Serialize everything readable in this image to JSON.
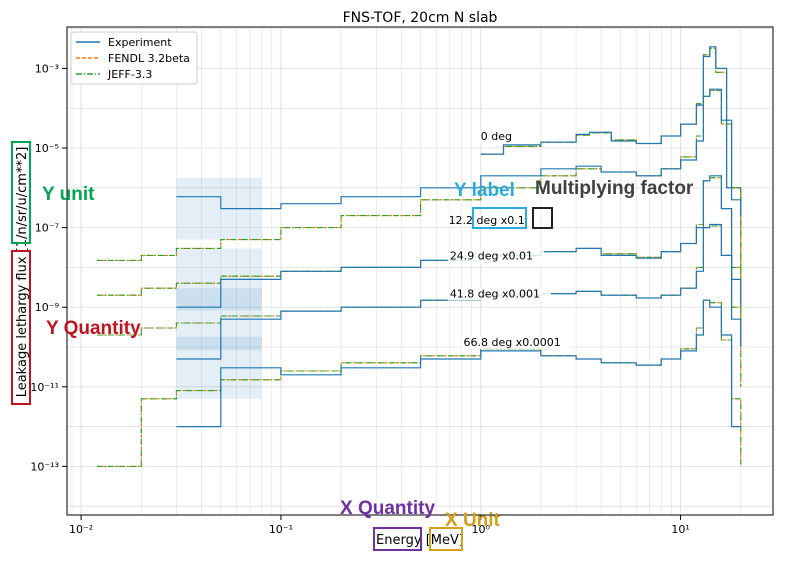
{
  "chart_data": {
    "type": "line",
    "title": "FNS-TOF, 20cm N slab",
    "xlabel": "Energy [MeV]",
    "ylabel": "Leakage lethargy flux [1/n/sr/u/cm**2]",
    "xscale": "log",
    "yscale": "log",
    "xlim": [
      0.0085,
      29
    ],
    "ylim": [
      6e-15,
      0.011
    ],
    "x_ticks": [
      {
        "value": 0.01,
        "label": "10⁻²"
      },
      {
        "value": 0.1,
        "label": "10⁻¹"
      },
      {
        "value": 1,
        "label": "10⁰"
      },
      {
        "value": 10,
        "label": "10¹"
      }
    ],
    "y_ticks": [
      {
        "value": 0.001,
        "label": "10⁻³"
      },
      {
        "value": 1e-05,
        "label": "10⁻⁵"
      },
      {
        "value": 1e-07,
        "label": "10⁻⁷"
      },
      {
        "value": 1e-09,
        "label": "10⁻⁹"
      },
      {
        "value": 1e-11,
        "label": "10⁻¹¹"
      },
      {
        "value": 1e-13,
        "label": "10⁻¹³"
      }
    ],
    "grid": true,
    "legend_position": "top-left",
    "legend": [
      {
        "name": "Experiment",
        "color": "#1f77b4",
        "dash": "solid"
      },
      {
        "name": "FENDL 3.2beta",
        "color": "#ff7f0e",
        "dash": "dashed"
      },
      {
        "name": "JEFF-3.3",
        "color": "#2ca02c",
        "dash": "dashdot"
      }
    ],
    "groups": [
      {
        "label": "0 deg",
        "label_pos": [
          1.0,
          1.6e-05
        ],
        "x": [
          0.012,
          0.02,
          0.03,
          0.05,
          0.1,
          0.2,
          0.5,
          1,
          1.3,
          2,
          3,
          3.5,
          4.5,
          6,
          8,
          10,
          12,
          13,
          14,
          15,
          17,
          20
        ],
        "experiment": [
          null,
          null,
          null,
          null,
          null,
          null,
          null,
          7e-06,
          1.2e-05,
          1.4e-05,
          2.2e-05,
          2.5e-05,
          1.5e-05,
          1.3e-05,
          2e-05,
          4e-05,
          0.00012,
          0.002,
          0.0035,
          0.001,
          1e-06,
          2e-07
        ],
        "fendl": [
          null,
          null,
          null,
          null,
          null,
          null,
          null,
          7e-06,
          1.1e-05,
          1.4e-05,
          2.1e-05,
          2.4e-05,
          1.6e-05,
          1.3e-05,
          2e-05,
          4e-05,
          0.00013,
          0.0022,
          0.0032,
          0.0008,
          1e-06,
          1e-08
        ],
        "jeff": [
          null,
          null,
          null,
          null,
          null,
          null,
          null,
          7e-06,
          1.1e-05,
          1.4e-05,
          2.1e-05,
          2.4e-05,
          1.6e-05,
          1.3e-05,
          2e-05,
          4e-05,
          0.00013,
          0.0022,
          0.0032,
          0.0008,
          1e-06,
          1e-08
        ]
      },
      {
        "label": "12.2 deg x0.1",
        "label_pos": [
          0.69,
          1.25e-07
        ],
        "x": [
          0.012,
          0.02,
          0.03,
          0.05,
          0.1,
          0.2,
          0.5,
          1,
          2,
          3,
          4,
          6,
          8,
          10,
          12,
          13,
          14,
          16,
          18,
          20
        ],
        "experiment": [
          null,
          null,
          6e-07,
          3e-07,
          4e-07,
          6e-07,
          1e-06,
          2e-06,
          3e-06,
          3.5e-06,
          2.5e-06,
          2e-06,
          3e-06,
          5e-06,
          1.5e-05,
          0.0002,
          0.0003,
          5e-05,
          5e-07,
          2e-07
        ],
        "fendl": [
          1.5e-08,
          2e-08,
          3e-08,
          5e-08,
          1e-07,
          2e-07,
          5e-07,
          1e-06,
          2e-06,
          3e-06,
          2.5e-06,
          2e-06,
          3e-06,
          6e-06,
          2e-05,
          0.0002,
          0.00028,
          4e-05,
          1e-06,
          1e-09
        ],
        "jeff": [
          1.5e-08,
          2e-08,
          3e-08,
          5e-08,
          1e-07,
          2e-07,
          5e-07,
          1e-06,
          2e-06,
          3e-06,
          2.5e-06,
          2e-06,
          3e-06,
          6e-06,
          2e-05,
          0.0002,
          0.00028,
          4e-05,
          1e-06,
          1e-09
        ]
      },
      {
        "label": "24.9 deg x0.01",
        "label_pos": [
          0.7,
          1.6e-08
        ],
        "x": [
          0.012,
          0.02,
          0.03,
          0.05,
          0.1,
          0.2,
          0.5,
          1,
          2,
          3,
          4,
          6,
          8,
          10,
          12,
          13,
          14,
          16,
          18,
          20
        ],
        "experiment": [
          null,
          null,
          1e-09,
          5e-09,
          8e-09,
          1e-08,
          1.5e-08,
          2e-08,
          2.5e-08,
          3e-08,
          2e-08,
          1.7e-08,
          2.5e-08,
          4e-08,
          1e-07,
          1.5e-06,
          2e-06,
          3e-07,
          5e-09,
          1e-09
        ],
        "fendl": [
          2e-09,
          3e-09,
          4e-09,
          6e-09,
          8e-09,
          1e-08,
          1.5e-08,
          2e-08,
          2.5e-08,
          3e-08,
          2.2e-08,
          1.8e-08,
          2.5e-08,
          4e-08,
          1.2e-07,
          1.5e-06,
          1.8e-06,
          3e-07,
          1e-08,
          1e-10
        ],
        "jeff": [
          2e-09,
          3e-09,
          4e-09,
          6e-09,
          8e-09,
          1e-08,
          1.5e-08,
          2e-08,
          2.5e-08,
          3e-08,
          2.2e-08,
          1.8e-08,
          2.5e-08,
          4e-08,
          1.2e-07,
          1.5e-06,
          1.8e-06,
          3e-07,
          1e-08,
          1e-10
        ]
      },
      {
        "label": "41.8 deg x0.001",
        "label_pos": [
          0.7,
          1.75e-09
        ],
        "x": [
          0.012,
          0.02,
          0.03,
          0.05,
          0.1,
          0.2,
          0.5,
          1,
          2,
          3,
          4,
          6,
          8,
          10,
          12,
          13,
          14,
          16,
          18,
          20
        ],
        "experiment": [
          null,
          null,
          5e-11,
          5e-10,
          8e-10,
          1e-09,
          1.5e-09,
          2e-09,
          2.2e-09,
          2.5e-09,
          2e-09,
          1.7e-09,
          2e-09,
          3e-09,
          8e-09,
          1e-07,
          1.2e-07,
          2e-08,
          5e-10,
          1e-10
        ],
        "fendl": [
          2e-10,
          3e-10,
          4e-10,
          6e-10,
          8e-10,
          1e-09,
          1.5e-09,
          2e-09,
          2.2e-09,
          2.5e-09,
          2e-09,
          1.7e-09,
          2e-09,
          3e-09,
          1e-08,
          1e-07,
          1.1e-07,
          2e-08,
          1e-09,
          1e-11
        ],
        "jeff": [
          2e-10,
          3e-10,
          4e-10,
          6e-10,
          8e-10,
          1e-09,
          1.5e-09,
          2e-09,
          2.2e-09,
          2.5e-09,
          2e-09,
          1.7e-09,
          2e-09,
          3e-09,
          1e-08,
          1e-07,
          1.1e-07,
          2e-08,
          1e-09,
          1e-11
        ]
      },
      {
        "label": "66.8 deg x0.0001",
        "label_pos": [
          0.82,
          1.05e-10
        ],
        "x": [
          0.012,
          0.02,
          0.03,
          0.05,
          0.1,
          0.2,
          0.5,
          1,
          2,
          3,
          4,
          6,
          8,
          10,
          12,
          13,
          14,
          16,
          18,
          20
        ],
        "experiment": [
          null,
          null,
          1e-12,
          3e-11,
          2e-11,
          3e-11,
          5e-11,
          8e-11,
          6e-11,
          5e-11,
          4e-11,
          3.5e-11,
          5e-11,
          8e-11,
          2e-10,
          1.5e-09,
          1e-09,
          2e-10,
          1e-12,
          1e-12
        ],
        "fendl": [
          1e-13,
          5e-12,
          8e-12,
          1.5e-11,
          2.5e-11,
          4e-11,
          6e-11,
          9e-11,
          6e-11,
          5e-11,
          4e-11,
          3.5e-11,
          5e-11,
          9e-11,
          3e-10,
          1.5e-09,
          1.3e-09,
          1.5e-10,
          5e-12,
          1e-13
        ],
        "jeff": [
          1e-13,
          5e-12,
          8e-12,
          1.5e-11,
          2.5e-11,
          4e-11,
          6e-11,
          9e-11,
          6e-11,
          5e-11,
          4e-11,
          3.5e-11,
          5e-11,
          9e-11,
          3e-10,
          1.5e-09,
          1.3e-09,
          1.5e-10,
          5e-12,
          1e-13
        ]
      }
    ]
  },
  "annotations": {
    "y_unit": "Y unit",
    "y_label": "Y label",
    "multiplying_factor": "Multiplying factor",
    "y_quantity": "Y Quantity",
    "x_quantity": "X Quantity",
    "x_unit": "X Unit",
    "colors": {
      "y_unit": "#00a651",
      "y_label": "#29abe2",
      "multiplying_factor": "#404040",
      "y_quantity": "#c1121f",
      "x_quantity": "#7030a0",
      "x_unit": "#d4a017"
    }
  }
}
